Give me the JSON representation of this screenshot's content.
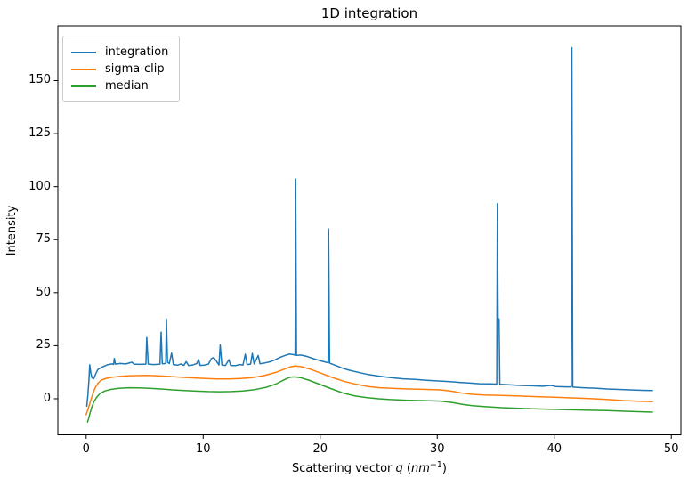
{
  "figure": {
    "title": "1D integration",
    "ylabel": "Intensity",
    "xlabel_parts": {
      "prefix": "Scattering vector ",
      "variable": "q",
      "open_paren": " (",
      "unit": "nm",
      "exponent": "−1",
      "close_paren": ")"
    },
    "background_color": "#ffffff",
    "spine_color": "#000000",
    "legend": {
      "border_color": "#cccccc",
      "background": "rgba(255,255,255,0.8)"
    }
  },
  "chart_data": {
    "type": "line",
    "title": "1D integration",
    "xlabel": "Scattering vector q (nm⁻¹)",
    "ylabel": "Intensity",
    "xlim": [
      -2.42,
      50.82
    ],
    "ylim": [
      -17.0,
      175.8
    ],
    "x_ticks": [
      0,
      10,
      20,
      30,
      40,
      50
    ],
    "y_ticks": [
      0,
      25,
      50,
      75,
      100,
      125,
      150
    ],
    "grid": false,
    "legend_position": "upper-left",
    "line_width": 1.5,
    "series": [
      {
        "name": "integration",
        "color": "#1f77b4",
        "points": [
          [
            0.05,
            -3.5
          ],
          [
            0.15,
            2
          ],
          [
            0.25,
            10
          ],
          [
            0.3,
            16
          ],
          [
            0.4,
            12
          ],
          [
            0.5,
            9.8
          ],
          [
            0.65,
            9.5
          ],
          [
            0.8,
            11.5
          ],
          [
            1.0,
            13.8
          ],
          [
            1.4,
            15
          ],
          [
            1.8,
            16
          ],
          [
            2.2,
            16.4
          ],
          [
            2.35,
            16.2
          ],
          [
            2.4,
            19
          ],
          [
            2.5,
            16.3
          ],
          [
            2.9,
            16.6
          ],
          [
            3.4,
            16.4
          ],
          [
            3.9,
            17.2
          ],
          [
            4.1,
            16.3
          ],
          [
            4.6,
            16.2
          ],
          [
            5.1,
            16.3
          ],
          [
            5.18,
            28.9
          ],
          [
            5.3,
            16.3
          ],
          [
            5.8,
            16.1
          ],
          [
            6.3,
            16.3
          ],
          [
            6.4,
            31.4
          ],
          [
            6.5,
            16.5
          ],
          [
            6.8,
            16.6
          ],
          [
            6.86,
            37.6
          ],
          [
            6.95,
            17.2
          ],
          [
            7.1,
            16.6
          ],
          [
            7.3,
            21.5
          ],
          [
            7.45,
            16.1
          ],
          [
            7.8,
            15.8
          ],
          [
            8.1,
            16.4
          ],
          [
            8.35,
            15.7
          ],
          [
            8.55,
            17.5
          ],
          [
            8.75,
            15.6
          ],
          [
            9.1,
            15.9
          ],
          [
            9.45,
            16.6
          ],
          [
            9.6,
            18.5
          ],
          [
            9.75,
            15.7
          ],
          [
            10.1,
            15.8
          ],
          [
            10.45,
            16.3
          ],
          [
            10.7,
            18.9
          ],
          [
            10.9,
            19.4
          ],
          [
            11.1,
            17.9
          ],
          [
            11.35,
            15.9
          ],
          [
            11.45,
            25.4
          ],
          [
            11.6,
            15.9
          ],
          [
            11.9,
            15.7
          ],
          [
            12.2,
            18.4
          ],
          [
            12.35,
            15.7
          ],
          [
            12.75,
            15.6
          ],
          [
            13.1,
            16.1
          ],
          [
            13.4,
            15.9
          ],
          [
            13.6,
            21
          ],
          [
            13.75,
            16.1
          ],
          [
            14.05,
            16.3
          ],
          [
            14.2,
            21.4
          ],
          [
            14.35,
            16.4
          ],
          [
            14.7,
            20.4
          ],
          [
            14.85,
            16.5
          ],
          [
            15.3,
            16.9
          ],
          [
            15.7,
            17.4
          ],
          [
            16.1,
            18.2
          ],
          [
            16.6,
            19.6
          ],
          [
            17.1,
            20.6
          ],
          [
            17.4,
            21
          ],
          [
            17.7,
            20.8
          ],
          [
            17.86,
            20.5
          ],
          [
            17.9,
            103.5
          ],
          [
            17.97,
            20.4
          ],
          [
            18.3,
            20.6
          ],
          [
            18.6,
            20.3
          ],
          [
            18.9,
            19.9
          ],
          [
            19.3,
            19.1
          ],
          [
            19.7,
            18.4
          ],
          [
            20.1,
            17.8
          ],
          [
            20.5,
            17.2
          ],
          [
            20.68,
            17
          ],
          [
            20.72,
            80
          ],
          [
            20.8,
            16.8
          ],
          [
            21.3,
            15.7
          ],
          [
            21.9,
            14.4
          ],
          [
            22.5,
            13.4
          ],
          [
            23.2,
            12.5
          ],
          [
            24.1,
            11.4
          ],
          [
            25.1,
            10.6
          ],
          [
            26.1,
            9.9
          ],
          [
            27.1,
            9.4
          ],
          [
            28.1,
            9.1
          ],
          [
            29.1,
            8.7
          ],
          [
            30.1,
            8.4
          ],
          [
            31.1,
            8.1
          ],
          [
            31.9,
            7.7
          ],
          [
            32.7,
            7.4
          ],
          [
            33.6,
            7.1
          ],
          [
            34.5,
            7.0
          ],
          [
            35.08,
            6.9
          ],
          [
            35.14,
            92
          ],
          [
            35.2,
            38
          ],
          [
            35.28,
            37.5
          ],
          [
            35.35,
            6.8
          ],
          [
            36.1,
            6.6
          ],
          [
            37.1,
            6.3
          ],
          [
            38.1,
            6.1
          ],
          [
            39.0,
            5.9
          ],
          [
            39.75,
            6.3
          ],
          [
            40.1,
            5.8
          ],
          [
            41.0,
            5.6
          ],
          [
            41.44,
            5.6
          ],
          [
            41.5,
            165.5
          ],
          [
            41.58,
            5.5
          ],
          [
            42.5,
            5.2
          ],
          [
            43.5,
            5.0
          ],
          [
            44.5,
            4.6
          ],
          [
            45.5,
            4.4
          ],
          [
            46.5,
            4.2
          ],
          [
            47.5,
            4.0
          ],
          [
            48.4,
            3.9
          ]
        ]
      },
      {
        "name": "sigma-clip",
        "color": "#ff7f0e",
        "points": [
          [
            0.0,
            -7.5
          ],
          [
            0.15,
            -5
          ],
          [
            0.35,
            -1.5
          ],
          [
            0.55,
            2
          ],
          [
            0.75,
            5
          ],
          [
            1.0,
            7.3
          ],
          [
            1.3,
            8.8
          ],
          [
            1.7,
            9.6
          ],
          [
            2.2,
            10.1
          ],
          [
            2.8,
            10.5
          ],
          [
            3.5,
            10.8
          ],
          [
            4.3,
            10.9
          ],
          [
            5.2,
            11.0
          ],
          [
            6.2,
            10.8
          ],
          [
            7.2,
            10.5
          ],
          [
            8.2,
            10.1
          ],
          [
            9.2,
            9.8
          ],
          [
            10.2,
            9.5
          ],
          [
            11.2,
            9.3
          ],
          [
            12.2,
            9.3
          ],
          [
            13.2,
            9.5
          ],
          [
            14.2,
            10.0
          ],
          [
            15.2,
            10.9
          ],
          [
            16.2,
            12.4
          ],
          [
            17.0,
            14.1
          ],
          [
            17.5,
            15.1
          ],
          [
            17.9,
            15.4
          ],
          [
            18.4,
            15.1
          ],
          [
            19.1,
            14.0
          ],
          [
            20.1,
            12.0
          ],
          [
            21.1,
            9.9
          ],
          [
            22.1,
            8.1
          ],
          [
            23.1,
            6.8
          ],
          [
            24.1,
            5.8
          ],
          [
            25.1,
            5.2
          ],
          [
            26.1,
            4.9
          ],
          [
            27.6,
            4.6
          ],
          [
            29.1,
            4.4
          ],
          [
            30.3,
            4.2
          ],
          [
            31.3,
            3.5
          ],
          [
            32.2,
            2.6
          ],
          [
            33.0,
            2.1
          ],
          [
            34.0,
            1.8
          ],
          [
            35.5,
            1.6
          ],
          [
            37.0,
            1.3
          ],
          [
            38.5,
            1.0
          ],
          [
            40.0,
            0.7
          ],
          [
            41.5,
            0.4
          ],
          [
            43.0,
            0.1
          ],
          [
            44.5,
            -0.3
          ],
          [
            46.0,
            -0.9
          ],
          [
            47.2,
            -1.2
          ],
          [
            48.4,
            -1.4
          ]
        ]
      },
      {
        "name": "median",
        "color": "#2ca02c",
        "points": [
          [
            0.12,
            -11
          ],
          [
            0.25,
            -8.5
          ],
          [
            0.45,
            -4.5
          ],
          [
            0.65,
            -1.5
          ],
          [
            0.9,
            0.8
          ],
          [
            1.2,
            2.5
          ],
          [
            1.6,
            3.7
          ],
          [
            2.1,
            4.4
          ],
          [
            2.8,
            4.9
          ],
          [
            3.6,
            5.2
          ],
          [
            4.5,
            5.1
          ],
          [
            5.4,
            4.9
          ],
          [
            6.4,
            4.6
          ],
          [
            7.4,
            4.2
          ],
          [
            8.4,
            3.9
          ],
          [
            9.4,
            3.6
          ],
          [
            10.4,
            3.4
          ],
          [
            11.4,
            3.3
          ],
          [
            12.4,
            3.4
          ],
          [
            13.4,
            3.7
          ],
          [
            14.4,
            4.3
          ],
          [
            15.4,
            5.4
          ],
          [
            16.2,
            6.9
          ],
          [
            16.9,
            8.9
          ],
          [
            17.4,
            10.1
          ],
          [
            17.8,
            10.3
          ],
          [
            18.3,
            10.0
          ],
          [
            19.0,
            8.8
          ],
          [
            20.0,
            6.7
          ],
          [
            21.0,
            4.6
          ],
          [
            22.0,
            2.6
          ],
          [
            23.0,
            1.3
          ],
          [
            24.0,
            0.5
          ],
          [
            25.0,
            0.0
          ],
          [
            26.0,
            -0.4
          ],
          [
            27.5,
            -0.7
          ],
          [
            29.0,
            -0.9
          ],
          [
            30.3,
            -1.1
          ],
          [
            31.3,
            -1.8
          ],
          [
            32.2,
            -2.7
          ],
          [
            33.0,
            -3.3
          ],
          [
            34.0,
            -3.7
          ],
          [
            35.5,
            -4.2
          ],
          [
            37.0,
            -4.5
          ],
          [
            38.5,
            -4.8
          ],
          [
            40.0,
            -5.0
          ],
          [
            41.5,
            -5.2
          ],
          [
            43.0,
            -5.4
          ],
          [
            44.5,
            -5.6
          ],
          [
            46.0,
            -5.9
          ],
          [
            47.2,
            -6.1
          ],
          [
            48.4,
            -6.3
          ]
        ]
      }
    ]
  }
}
